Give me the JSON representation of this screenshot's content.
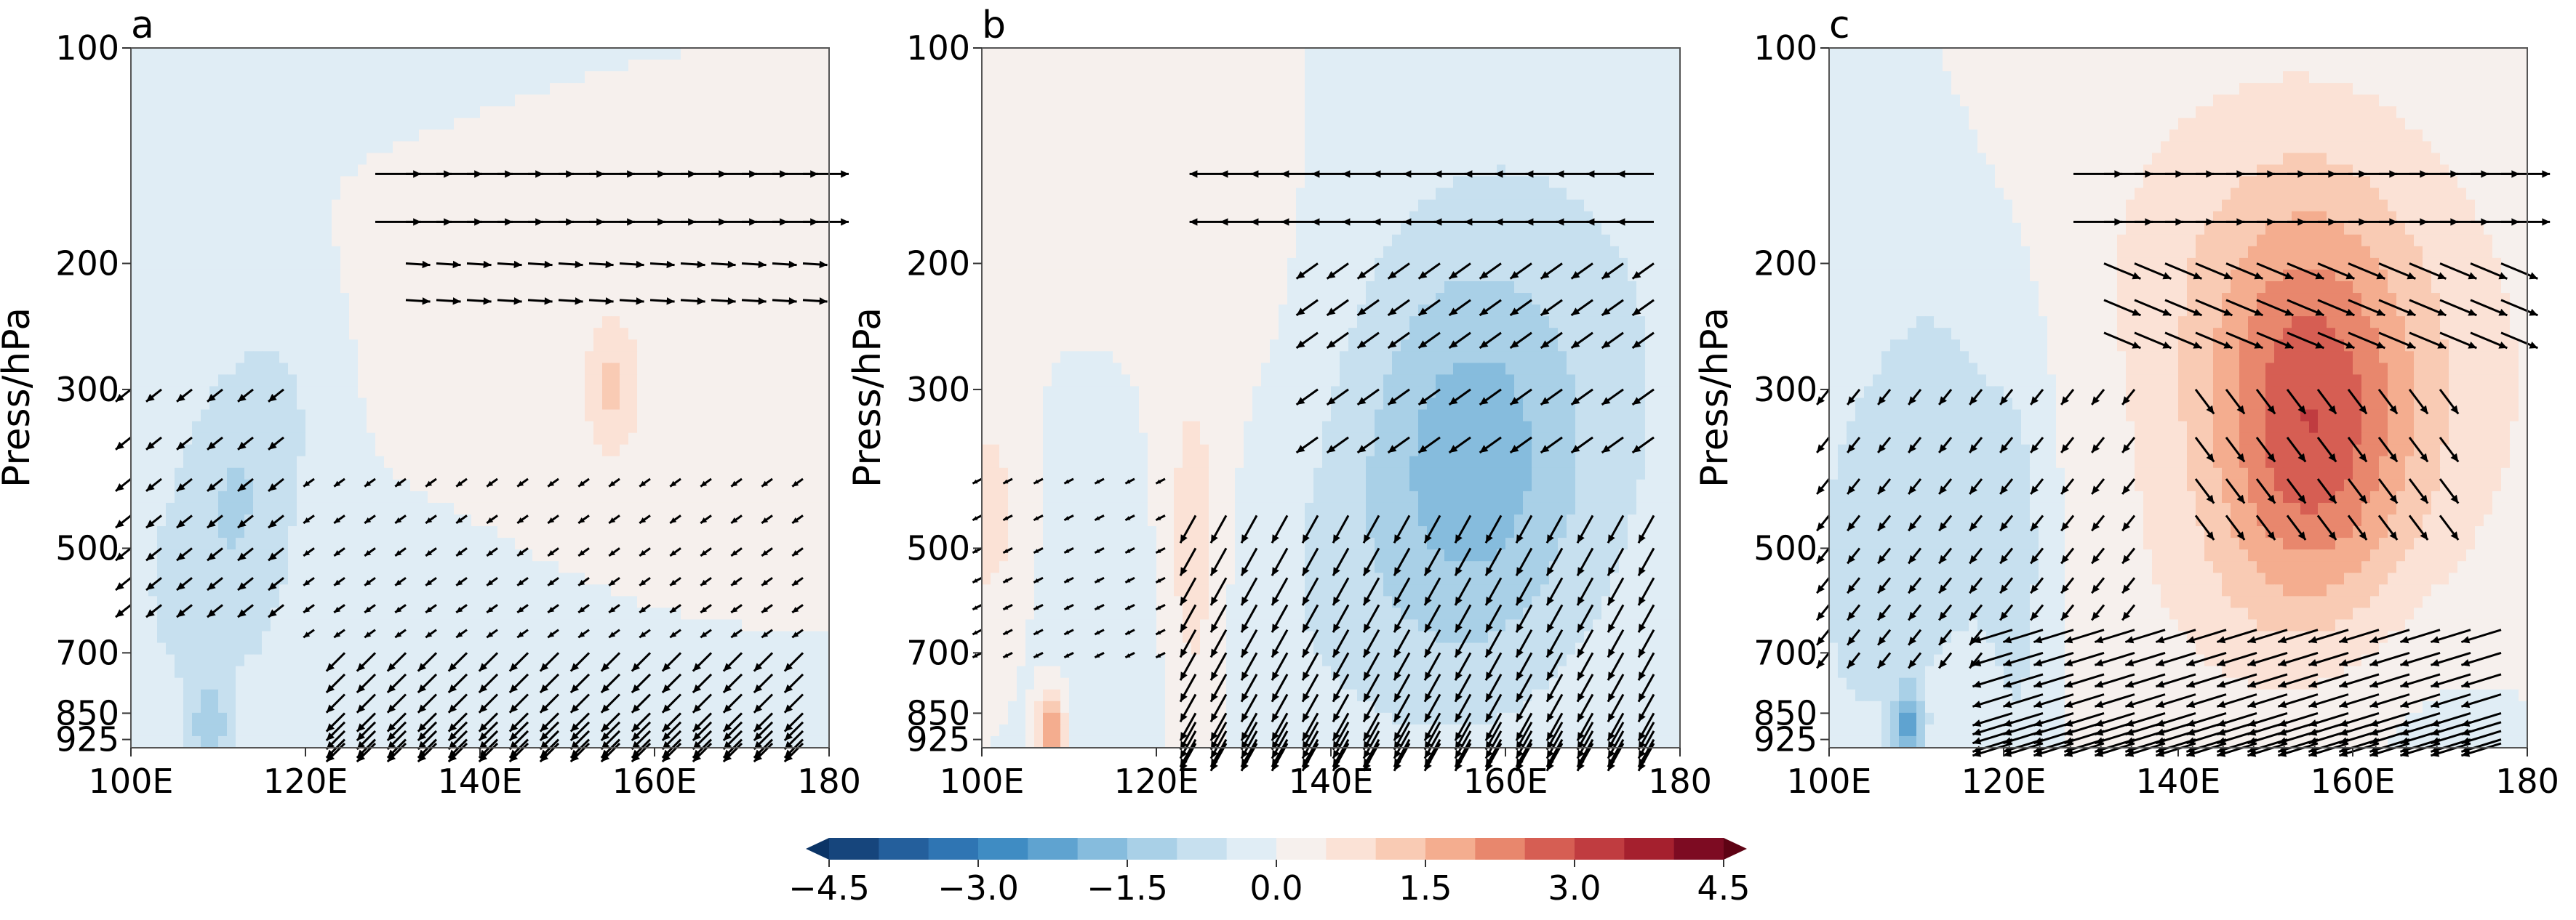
{
  "chart_data": [
    {
      "type": "heatmap",
      "panel_label": "a",
      "xlabel": "",
      "ylabel": "Press/hPa",
      "x_ticks": [
        "100E",
        "120E",
        "140E",
        "160E",
        "180"
      ],
      "y_ticks": [
        "100",
        "200",
        "300",
        "500",
        "700",
        "850",
        "925"
      ],
      "xlim": [
        100,
        180
      ],
      "ylim_hPa": [
        950,
        100
      ],
      "y_scale": "log",
      "field_blobs": [
        {
          "lon": 150,
          "p": 200,
          "slon": 25,
          "sp": 0.55,
          "v": 0.3
        },
        {
          "lon": 165,
          "p": 450,
          "slon": 18,
          "sp": 0.6,
          "v": 0.3
        },
        {
          "lon": 112,
          "p": 420,
          "slon": 4,
          "sp": 0.3,
          "v": -0.7
        },
        {
          "lon": 105,
          "p": 550,
          "slon": 6,
          "sp": 0.4,
          "v": -0.4
        },
        {
          "lon": 118,
          "p": 300,
          "slon": 5,
          "sp": 0.3,
          "v": -0.5
        },
        {
          "lon": 130,
          "p": 700,
          "slon": 20,
          "sp": 0.4,
          "v": -0.35
        },
        {
          "lon": 165,
          "p": 800,
          "slon": 18,
          "sp": 0.3,
          "v": -0.3
        },
        {
          "lon": 109,
          "p": 900,
          "slon": 1.5,
          "sp": 0.1,
          "v": -1.2
        },
        {
          "lon": 155,
          "p": 300,
          "slon": 1.5,
          "sp": 0.12,
          "v": 0.8
        },
        {
          "lon": 140,
          "p": 120,
          "slon": 30,
          "sp": 0.4,
          "v": -0.2
        }
      ],
      "wind_regions": [
        {
          "lon": [
            126,
            180
          ],
          "p": [
            130,
            175
          ],
          "u": 1.5,
          "v": 0.0
        },
        {
          "lon": [
            130,
            180
          ],
          "p": [
            195,
            245
          ],
          "u": 0.8,
          "v": 0.05
        },
        {
          "lon": [
            100,
            118
          ],
          "p": [
            260,
            600
          ],
          "u": -0.5,
          "v": 0.4
        },
        {
          "lon": [
            118,
            180
          ],
          "p": [
            400,
            650
          ],
          "u": -0.35,
          "v": 0.25
        },
        {
          "lon": [
            123,
            180
          ],
          "p": [
            700,
            950
          ],
          "u": -0.6,
          "v": 0.6
        }
      ]
    },
    {
      "type": "heatmap",
      "panel_label": "b",
      "xlabel": "",
      "ylabel": "Press/hPa",
      "x_ticks": [
        "100E",
        "120E",
        "140E",
        "160E",
        "180"
      ],
      "y_ticks": [
        "100",
        "200",
        "300",
        "500",
        "700",
        "850",
        "925"
      ],
      "xlim": [
        100,
        180
      ],
      "ylim_hPa": [
        950,
        100
      ],
      "y_scale": "log",
      "field_blobs": [
        {
          "lon": 156,
          "p": 380,
          "slon": 9,
          "sp": 0.45,
          "v": -1.3
        },
        {
          "lon": 165,
          "p": 250,
          "slon": 18,
          "sp": 0.7,
          "v": -0.5
        },
        {
          "lon": 140,
          "p": 600,
          "slon": 18,
          "sp": 0.5,
          "v": -0.4
        },
        {
          "lon": 124,
          "p": 550,
          "slon": 3,
          "sp": 0.45,
          "v": 1.0
        },
        {
          "lon": 110,
          "p": 120,
          "slon": 12,
          "sp": 0.35,
          "v": 0.4
        },
        {
          "lon": 101,
          "p": 450,
          "slon": 3,
          "sp": 0.3,
          "v": 0.7
        },
        {
          "lon": 108,
          "p": 900,
          "slon": 1.2,
          "sp": 0.1,
          "v": 2.0
        },
        {
          "lon": 130,
          "p": 250,
          "slon": 8,
          "sp": 0.5,
          "v": 0.25
        },
        {
          "lon": 116,
          "p": 700,
          "slon": 6,
          "sp": 0.4,
          "v": -0.3
        }
      ],
      "wind_regions": [
        {
          "lon": [
            126,
            180
          ],
          "p": [
            130,
            175
          ],
          "u": -1.2,
          "v": 0.0
        },
        {
          "lon": [
            138,
            180
          ],
          "p": [
            180,
            360
          ],
          "u": -0.7,
          "v": 0.5
        },
        {
          "lon": [
            100,
            124
          ],
          "p": [
            360,
            700
          ],
          "u": -0.3,
          "v": 0.15
        },
        {
          "lon": [
            124,
            180
          ],
          "p": [
            450,
            950
          ],
          "u": -0.5,
          "v": 0.9
        }
      ]
    },
    {
      "type": "heatmap",
      "panel_label": "c",
      "xlabel": "",
      "ylabel": "Press/hPa",
      "x_ticks": [
        "100E",
        "120E",
        "140E",
        "160E",
        "180"
      ],
      "y_ticks": [
        "100",
        "200",
        "300",
        "500",
        "700",
        "850",
        "925"
      ],
      "xlim": [
        100,
        180
      ],
      "ylim_hPa": [
        950,
        100
      ],
      "y_scale": "log",
      "field_blobs": [
        {
          "lon": 155,
          "p": 350,
          "slon": 8,
          "sp": 0.45,
          "v": 2.2
        },
        {
          "lon": 150,
          "p": 200,
          "slon": 16,
          "sp": 0.5,
          "v": 0.8
        },
        {
          "lon": 168,
          "p": 350,
          "slon": 14,
          "sp": 0.6,
          "v": 0.5
        },
        {
          "lon": 112,
          "p": 400,
          "slon": 6,
          "sp": 0.5,
          "v": -0.9
        },
        {
          "lon": 103,
          "p": 550,
          "slon": 4,
          "sp": 0.4,
          "v": -0.6
        },
        {
          "lon": 109,
          "p": 900,
          "slon": 1.2,
          "sp": 0.1,
          "v": -2.0
        },
        {
          "lon": 122,
          "p": 550,
          "slon": 3,
          "sp": 0.6,
          "v": -0.6
        },
        {
          "lon": 140,
          "p": 600,
          "slon": 12,
          "sp": 0.4,
          "v": 0.3
        },
        {
          "lon": 165,
          "p": 800,
          "slon": 12,
          "sp": 0.3,
          "v": -0.3
        }
      ],
      "wind_regions": [
        {
          "lon": [
            126,
            180
          ],
          "p": [
            130,
            175
          ],
          "u": 1.6,
          "v": 0.0
        },
        {
          "lon": [
            130,
            180
          ],
          "p": [
            185,
            250
          ],
          "u": 1.2,
          "v": 0.5
        },
        {
          "lon": [
            140,
            172
          ],
          "p": [
            260,
            450
          ],
          "u": 0.6,
          "v": 0.8
        },
        {
          "lon": [
            100,
            135
          ],
          "p": [
            300,
            700
          ],
          "u": -0.4,
          "v": 0.5
        },
        {
          "lon": [
            118,
            180
          ],
          "p": [
            620,
            950
          ],
          "u": -1.3,
          "v": 0.4
        }
      ]
    }
  ],
  "colorbar": {
    "levels": [
      -4.5,
      -4.0,
      -3.5,
      -3.0,
      -2.5,
      -2.0,
      -1.5,
      -1.0,
      -0.5,
      0.0,
      0.5,
      1.0,
      1.5,
      2.0,
      2.5,
      3.0,
      3.5,
      4.0,
      4.5
    ],
    "colors": [
      "#16457c",
      "#245f9c",
      "#2f75b3",
      "#3f8cc3",
      "#5fa3d0",
      "#86bcdd",
      "#a9d0e7",
      "#c7e0ef",
      "#e0edf5",
      "#f6f0ed",
      "#fbe2d6",
      "#f9cbb4",
      "#f4ad8f",
      "#e8876d",
      "#d65e53",
      "#c03c40",
      "#a5202e",
      "#7d0b22"
    ],
    "under_color": "#0b3466",
    "over_color": "#5e0314",
    "tick_labels": [
      "−4.5",
      "−3.0",
      "−1.5",
      "0.0",
      "1.5",
      "3.0",
      "4.5"
    ],
    "tick_values": [
      -4.5,
      -3.0,
      -1.5,
      0.0,
      1.5,
      3.0,
      4.5
    ]
  }
}
